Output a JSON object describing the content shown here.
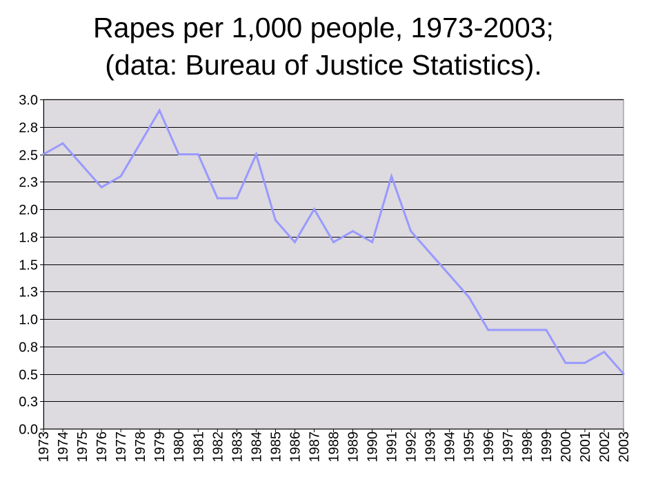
{
  "chart_data": {
    "type": "line",
    "title_lines": [
      "Rapes per 1,000 people, 1973-2003;",
      "(data: Bureau of Justice Statistics)."
    ],
    "xlabel": "",
    "ylabel": "",
    "ylim": [
      0,
      3.0
    ],
    "grid": true,
    "legend": "none",
    "y_ticks": [
      "0.0",
      "0.3",
      "0.5",
      "0.8",
      "1.0",
      "1.3",
      "1.5",
      "1.8",
      "2.0",
      "2.3",
      "2.5",
      "2.8",
      "3.0"
    ],
    "y_tick_values": [
      0,
      0.25,
      0.5,
      0.75,
      1.0,
      1.25,
      1.5,
      1.75,
      2.0,
      2.25,
      2.5,
      2.75,
      3.0
    ],
    "categories": [
      "1973",
      "1974",
      "1975",
      "1976",
      "1977",
      "1978",
      "1979",
      "1980",
      "1981",
      "1982",
      "1983",
      "1984",
      "1985",
      "1986",
      "1987",
      "1988",
      "1989",
      "1990",
      "1991",
      "1992",
      "1993",
      "1994",
      "1995",
      "1996",
      "1997",
      "1998",
      "1999",
      "2000",
      "2001",
      "2002",
      "2003"
    ],
    "series": [
      {
        "values": [
          2.5,
          2.6,
          2.4,
          2.2,
          2.3,
          2.6,
          2.9,
          2.5,
          2.5,
          2.1,
          2.1,
          2.5,
          1.9,
          1.7,
          2.0,
          1.7,
          1.8,
          1.7,
          2.3,
          1.8,
          1.6,
          1.4,
          1.2,
          0.9,
          0.9,
          0.9,
          0.9,
          0.6,
          0.6,
          0.7,
          0.5
        ]
      }
    ],
    "colors": {
      "line": "#9999ff",
      "plot_background": "#dddae0",
      "grid": "#000000"
    }
  }
}
